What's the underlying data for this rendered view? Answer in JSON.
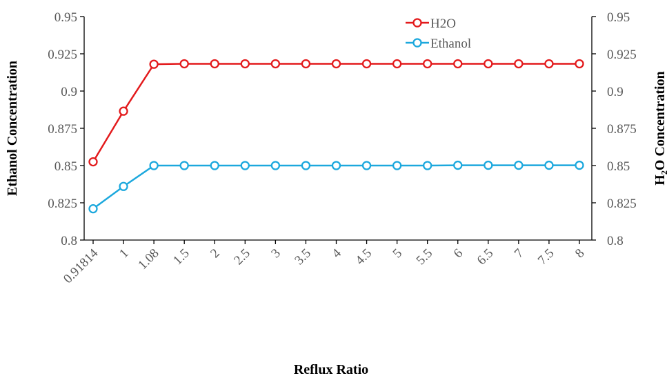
{
  "chart_data": {
    "type": "line",
    "categories": [
      "0.91814",
      "1",
      "1.08",
      "1.5",
      "2",
      "2.5",
      "3",
      "3.5",
      "4",
      "4.5",
      "5",
      "5.5",
      "6",
      "6.5",
      "7",
      "7.5",
      "8"
    ],
    "series": [
      {
        "name": "H2O",
        "color": "#e31a1c",
        "values": [
          0.8525,
          0.8865,
          0.918,
          0.9183,
          0.9183,
          0.9183,
          0.9183,
          0.9183,
          0.9183,
          0.9183,
          0.9183,
          0.9183,
          0.9183,
          0.9183,
          0.9183,
          0.9183,
          0.9183
        ]
      },
      {
        "name": "Ethanol",
        "color": "#1ca8dd",
        "values": [
          0.821,
          0.836,
          0.85,
          0.85,
          0.85,
          0.85,
          0.85,
          0.85,
          0.85,
          0.85,
          0.85,
          0.85,
          0.8502,
          0.8502,
          0.8502,
          0.8502,
          0.8502
        ]
      }
    ],
    "xlabel": "Reflux Ratio",
    "ylabel": "Ethanol Concentration",
    "y2label": "H₂O Concentration",
    "ylim": [
      0.8,
      0.95
    ],
    "y2lim": [
      0.8,
      0.95
    ],
    "yticks": [
      "0.8",
      "0.825",
      "0.85",
      "0.875",
      "0.9",
      "0.925",
      "0.95"
    ],
    "y2ticks": [
      "0.8",
      "0.825",
      "0.85",
      "0.875",
      "0.9",
      "0.925",
      "0.95"
    ],
    "legend_position": "top-right",
    "grid": false
  }
}
